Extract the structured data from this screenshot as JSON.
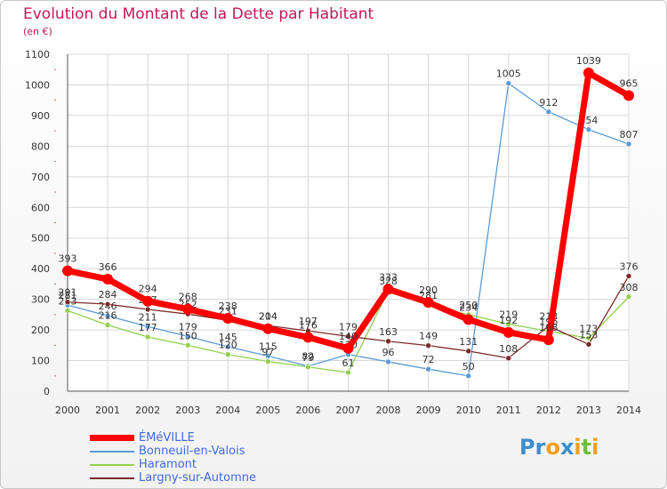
{
  "title": "Evolution du Montant de la Dette par Habitant",
  "subtitle": "(en €)",
  "logo": {
    "text": "Proxiti",
    "letters": [
      "P",
      "r",
      "o",
      "x",
      "i",
      "t",
      "i"
    ],
    "colors": [
      "#3b8ed0",
      "#3b8ed0",
      "#f0a020",
      "#3b8ed0",
      "#f0a020",
      "#6cbf3a",
      "#f0a020"
    ]
  },
  "chart_data": {
    "type": "line",
    "title": "Evolution du Montant de la Dette par Habitant",
    "ylabel": "(en €)",
    "xlabel": "",
    "x": [
      "2000",
      "2001",
      "2002",
      "2003",
      "2004",
      "2005",
      "2006",
      "2007",
      "2008",
      "2009",
      "2010",
      "2011",
      "2012",
      "2013",
      "2014"
    ],
    "ylim": [
      0,
      1100
    ],
    "yticks": [
      0,
      100,
      200,
      300,
      400,
      500,
      600,
      700,
      800,
      900,
      1000,
      1100
    ],
    "grid": true,
    "legend_position": "bottom-left",
    "series": [
      {
        "name": "ÉMéVILLE",
        "color": "#ff0000",
        "values": [
          393,
          366,
          294,
          268,
          238,
          204,
          176,
          140,
          333,
          290,
          234,
          192,
          168,
          1039,
          965
        ]
      },
      {
        "name": "Bonneuil-en-Valois",
        "color": "#5b9bd5",
        "values": [
          281,
          246,
          211,
          179,
          145,
          115,
          82,
          120,
          96,
          72,
          50,
          1005,
          912,
          854,
          807
        ]
      },
      {
        "name": "Haramont",
        "color": "#92d050",
        "values": [
          263,
          216,
          177,
          150,
          120,
          97,
          79,
          61,
          328,
          281,
          250,
          219,
          196,
          173,
          308
        ]
      },
      {
        "name": "Largny-sur-Automne",
        "color": "#7b2a2a",
        "values": [
          291,
          284,
          267,
          252,
          231,
          214,
          197,
          179,
          163,
          149,
          131,
          108,
          213,
          153,
          376
        ]
      }
    ]
  }
}
